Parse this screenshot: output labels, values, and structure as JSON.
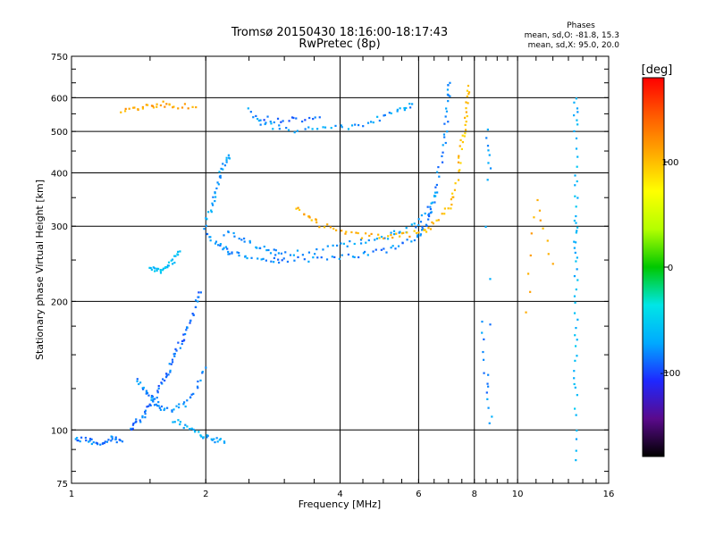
{
  "chart_data": {
    "type": "scatter",
    "title": "Tromsø 20150430 18:16:00-18:17:43",
    "subtitle": "RwPretec (8p)",
    "xlabel": "Frequency [MHz]",
    "ylabel": "Stationary phase Virtual Height [km]",
    "x_scale": "log",
    "y_scale": "log",
    "xlim": [
      1,
      16
    ],
    "ylim": [
      75,
      750
    ],
    "x_ticks": [
      1,
      2,
      4,
      6,
      8,
      10,
      16
    ],
    "x_tick_labels": [
      "1",
      "2",
      "4",
      "6",
      "8",
      "10",
      "16"
    ],
    "y_ticks": [
      75,
      100,
      200,
      300,
      400,
      500,
      600,
      750
    ],
    "y_tick_labels": [
      "75",
      "100",
      "200",
      "300",
      "400",
      "500",
      "600",
      "750"
    ],
    "grid": true,
    "phases_box": {
      "title": "Phases",
      "line1": "mean, sd,O: -81.8, 15.3",
      "line2": "mean, sd,X:  95.0, 20.0"
    },
    "colorbar": {
      "label": "[deg]",
      "range": [
        -180,
        180
      ],
      "ticks": [
        100,
        0,
        -100
      ],
      "tick_labels": [
        "100",
        "0",
        "-100"
      ],
      "colors": [
        "#000000",
        "#5a0a8c",
        "#1e28ff",
        "#00aaff",
        "#00e6e6",
        "#00c800",
        "#b4ff00",
        "#ffff00",
        "#ffaa00",
        "#ff5a00",
        "#ff0000"
      ]
    },
    "traces": [
      {
        "points": [
          [
            1.0,
            95
          ],
          [
            1.05,
            95
          ],
          [
            1.1,
            94
          ],
          [
            1.15,
            93
          ],
          [
            1.2,
            95
          ],
          [
            1.25,
            96
          ],
          [
            1.3,
            94
          ]
        ],
        "phase": -85
      },
      {
        "points": [
          [
            1.35,
            100
          ],
          [
            1.4,
            104
          ],
          [
            1.45,
            108
          ],
          [
            1.5,
            115
          ],
          [
            1.55,
            122
          ],
          [
            1.6,
            130
          ],
          [
            1.65,
            138
          ],
          [
            1.7,
            148
          ],
          [
            1.75,
            158
          ],
          [
            1.8,
            168
          ],
          [
            1.85,
            180
          ],
          [
            1.9,
            195
          ],
          [
            1.95,
            210
          ]
        ],
        "phase": -88
      },
      {
        "points": [
          [
            1.4,
            130
          ],
          [
            1.45,
            125
          ],
          [
            1.5,
            120
          ],
          [
            1.55,
            115
          ],
          [
            1.6,
            112
          ],
          [
            1.7,
            112
          ],
          [
            1.8,
            115
          ],
          [
            1.9,
            125
          ],
          [
            2.0,
            140
          ]
        ],
        "phase": -80
      },
      {
        "points": [
          [
            2.0,
            300
          ],
          [
            2.05,
            330
          ],
          [
            2.1,
            360
          ],
          [
            2.15,
            390
          ],
          [
            2.2,
            420
          ],
          [
            2.25,
            440
          ]
        ],
        "phase": -75
      },
      {
        "points": [
          [
            2.0,
            290
          ],
          [
            2.1,
            275
          ],
          [
            2.2,
            265
          ],
          [
            2.3,
            258
          ],
          [
            2.5,
            253
          ],
          [
            2.8,
            251
          ],
          [
            3.0,
            250
          ],
          [
            3.5,
            251
          ],
          [
            4.0,
            254
          ],
          [
            4.5,
            258
          ],
          [
            5.0,
            263
          ],
          [
            5.5,
            272
          ],
          [
            6.0,
            285
          ],
          [
            6.2,
            300
          ],
          [
            6.4,
            330
          ],
          [
            6.6,
            380
          ],
          [
            6.8,
            450
          ],
          [
            6.9,
            520
          ],
          [
            7.0,
            600
          ],
          [
            7.05,
            650
          ]
        ],
        "phase": -82
      },
      {
        "points": [
          [
            2.2,
            290
          ],
          [
            2.4,
            280
          ],
          [
            2.6,
            270
          ],
          [
            2.8,
            262
          ],
          [
            3.0,
            258
          ],
          [
            3.5,
            262
          ],
          [
            4.0,
            270
          ],
          [
            4.5,
            276
          ],
          [
            5.0,
            283
          ],
          [
            5.5,
            292
          ],
          [
            6.0,
            305
          ],
          [
            6.3,
            325
          ],
          [
            6.6,
            360
          ]
        ],
        "phase": -78
      },
      {
        "points": [
          [
            3.2,
            330
          ],
          [
            3.4,
            315
          ],
          [
            3.6,
            303
          ],
          [
            4.0,
            290
          ],
          [
            4.5,
            285
          ],
          [
            5.0,
            283
          ],
          [
            5.5,
            285
          ],
          [
            6.0,
            290
          ]
        ],
        "phase": 105
      },
      {
        "points": [
          [
            6.2,
            290
          ],
          [
            6.5,
            305
          ],
          [
            7.0,
            330
          ],
          [
            7.2,
            360
          ],
          [
            7.4,
            420
          ],
          [
            7.5,
            470
          ],
          [
            7.6,
            520
          ],
          [
            7.7,
            580
          ],
          [
            7.75,
            640
          ]
        ],
        "phase": 100
      },
      {
        "points": [
          [
            2.5,
            560
          ],
          [
            2.7,
            520
          ],
          [
            3.0,
            505
          ],
          [
            3.5,
            505
          ],
          [
            4.0,
            510
          ],
          [
            4.5,
            520
          ],
          [
            5.0,
            540
          ],
          [
            5.5,
            560
          ],
          [
            5.8,
            580
          ]
        ],
        "phase": -75
      },
      {
        "points": [
          [
            2.6,
            540
          ],
          [
            2.9,
            530
          ],
          [
            3.2,
            535
          ],
          [
            3.6,
            540
          ]
        ],
        "phase": -90
      },
      {
        "points": [
          [
            1.3,
            560
          ],
          [
            1.4,
            565
          ],
          [
            1.5,
            575
          ],
          [
            1.6,
            580
          ],
          [
            1.7,
            575
          ],
          [
            1.9,
            570
          ]
        ],
        "phase": 110
      },
      {
        "points": [
          [
            1.5,
            240
          ],
          [
            1.55,
            238
          ],
          [
            1.6,
            236
          ],
          [
            1.65,
            240
          ],
          [
            1.7,
            250
          ],
          [
            1.75,
            262
          ]
        ],
        "phase": -60
      },
      {
        "points": [
          [
            1.7,
            105
          ],
          [
            1.8,
            102
          ],
          [
            1.9,
            98
          ],
          [
            2.0,
            96
          ],
          [
            2.1,
            95
          ],
          [
            2.2,
            94
          ]
        ],
        "phase": -70
      },
      {
        "points": [
          [
            13.5,
            600
          ],
          [
            13.5,
            520
          ],
          [
            13.5,
            400
          ],
          [
            13.5,
            320
          ],
          [
            13.5,
            280
          ],
          [
            13.5,
            240
          ],
          [
            13.5,
            190
          ],
          [
            13.5,
            150
          ],
          [
            13.5,
            120
          ],
          [
            13.5,
            85
          ]
        ],
        "phase": -65
      },
      {
        "points": [
          [
            8.3,
            180
          ],
          [
            8.5,
            130
          ],
          [
            8.7,
            105
          ],
          [
            8.5,
            500
          ],
          [
            8.7,
            410
          ]
        ],
        "phase": -80
      },
      {
        "points": [
          [
            10.5,
            190
          ],
          [
            11.0,
            350
          ],
          [
            12.0,
            245
          ]
        ],
        "phase": 110
      }
    ]
  }
}
